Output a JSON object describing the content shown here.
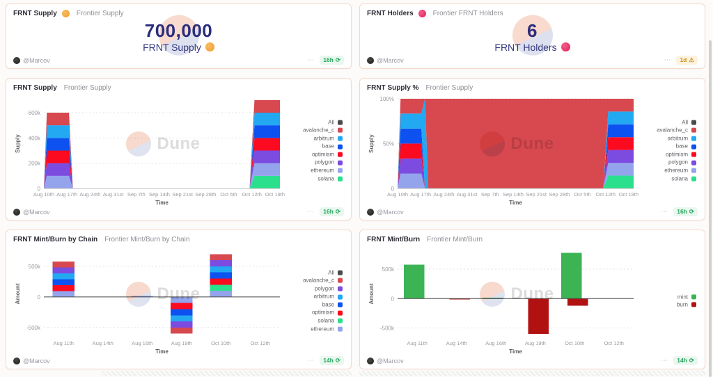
{
  "watermark": {
    "text": "Dune"
  },
  "ui": {
    "more": "⋯"
  },
  "badge_icons": {
    "ok": "⟳",
    "warn": "⚠"
  },
  "colors": {
    "panel_border": "#f5d8c7",
    "navy": "#2b2d7c",
    "all": "#4a4a4a",
    "avalanche_c": "#d7484f",
    "arbitrum": "#23a8f2",
    "base": "#0d51f0",
    "optimism": "#fb0a20",
    "polygon": "#7c4be0",
    "ethereum": "#94a4ec",
    "solana": "#2ae08c",
    "mint": "#3cb454",
    "burn": "#b11111",
    "badge_ok": "#27a35f",
    "badge_warn": "#cf9018"
  },
  "panels": [
    {
      "title": "FRNT Supply",
      "title_icon": "coin",
      "subtitle": "Frontier Supply",
      "counter": {
        "value": "700,000",
        "label": "FRNT Supply"
      },
      "footer": {
        "author": "@Marcov",
        "age": "16h",
        "state": "ok"
      }
    },
    {
      "title": "FRNT Holders",
      "title_icon": "berry",
      "subtitle": "Frontier FRNT Holders",
      "counter": {
        "value": "6",
        "label": "FRNT Holders"
      },
      "footer": {
        "author": "@Marcov",
        "age": "1d",
        "state": "warn"
      }
    },
    {
      "title": "FRNT Supply",
      "subtitle": "Frontier Supply",
      "chart": 0,
      "footer": {
        "author": "@Marcov",
        "age": "16h",
        "state": "ok"
      }
    },
    {
      "title": "FRNT Supply %",
      "subtitle": "Frontier Supply",
      "chart": 1,
      "footer": {
        "author": "@Marcov",
        "age": "16h",
        "state": "ok"
      }
    },
    {
      "title": "FRNT Mint/Burn by Chain",
      "subtitle": "Frontier Mint/Burn by Chain",
      "chart": 2,
      "footer": {
        "author": "@Marcov",
        "age": "14h",
        "state": "ok"
      }
    },
    {
      "title": "FRNT Mint/Burn",
      "subtitle": "Frontier Mint/Burn",
      "chart": 3,
      "footer": {
        "author": "@Marcov",
        "age": "14h",
        "state": "ok"
      }
    }
  ],
  "chart_data": [
    {
      "type": "area",
      "stacked": true,
      "title": "FRNT Supply",
      "xlabel": "Time",
      "ylabel": "Supply",
      "unit": "k tokens",
      "grid": true,
      "legend_position": "right",
      "xlim": [
        0,
        71.5
      ],
      "ylim": [
        0,
        710
      ],
      "x_breakpoints": [
        0,
        0.9,
        7.6,
        8.8,
        62.3,
        63.8,
        71.5
      ],
      "x_ticks": [
        {
          "v": 0,
          "label": "Aug 10th"
        },
        {
          "v": 7,
          "label": "Aug 17th"
        },
        {
          "v": 14,
          "label": "Aug 24th"
        },
        {
          "v": 21,
          "label": "Aug 31st"
        },
        {
          "v": 28,
          "label": "Sep 7th"
        },
        {
          "v": 35,
          "label": "Sep 14th"
        },
        {
          "v": 42,
          "label": "Sep 21st"
        },
        {
          "v": 49,
          "label": "Sep 28th"
        },
        {
          "v": 56,
          "label": "Oct 5th"
        },
        {
          "v": 63,
          "label": "Oct 12th"
        },
        {
          "v": 70,
          "label": "Oct 19th"
        }
      ],
      "y_ticks": [
        {
          "v": 0,
          "label": "0"
        },
        {
          "v": 200,
          "label": "200k"
        },
        {
          "v": 400,
          "label": "400k"
        },
        {
          "v": 600,
          "label": "600k"
        }
      ],
      "series": [
        {
          "name": "solana",
          "color": "#2ae08c",
          "values": [
            0,
            0,
            0,
            0,
            0,
            100,
            100
          ]
        },
        {
          "name": "ethereum",
          "color": "#94a4ec",
          "values": [
            0,
            100,
            100,
            0,
            0,
            100,
            100
          ]
        },
        {
          "name": "polygon",
          "color": "#7c4be0",
          "values": [
            0,
            100,
            100,
            0,
            0,
            100,
            100
          ]
        },
        {
          "name": "optimism",
          "color": "#fb0a20",
          "values": [
            0,
            100,
            100,
            0,
            0,
            100,
            100
          ]
        },
        {
          "name": "base",
          "color": "#0d51f0",
          "values": [
            0,
            100,
            100,
            0,
            0,
            100,
            100
          ]
        },
        {
          "name": "arbitrum",
          "color": "#23a8f2",
          "values": [
            0,
            100,
            100,
            0,
            0,
            100,
            100
          ]
        },
        {
          "name": "avalanche_c",
          "color": "#d7484f",
          "values": [
            0,
            100,
            100,
            0,
            0,
            100,
            100
          ]
        }
      ],
      "legend": [
        {
          "label": "All",
          "color": "#4a4a4a"
        },
        {
          "label": "avalanche_c",
          "color": "#d7484f"
        },
        {
          "label": "arbitrum",
          "color": "#23a8f2"
        },
        {
          "label": "base",
          "color": "#0d51f0"
        },
        {
          "label": "optimism",
          "color": "#fb0a20"
        },
        {
          "label": "polygon",
          "color": "#7c4be0"
        },
        {
          "label": "ethereum",
          "color": "#94a4ec"
        },
        {
          "label": "solana",
          "color": "#2ae08c"
        }
      ]
    },
    {
      "type": "area",
      "stacked": true,
      "percent": true,
      "title": "FRNT Supply %",
      "xlabel": "Time",
      "ylabel": "Supply",
      "unit": "%",
      "grid": true,
      "legend_position": "right",
      "xlim": [
        0,
        71.5
      ],
      "ylim": [
        0,
        100
      ],
      "x_breakpoints": [
        0,
        0.9,
        7.2,
        8.3,
        9.3,
        62.3,
        63.8,
        71.5
      ],
      "x_ticks": [
        {
          "v": 0,
          "label": "Aug 10th"
        },
        {
          "v": 7,
          "label": "Aug 17th"
        },
        {
          "v": 14,
          "label": "Aug 24th"
        },
        {
          "v": 21,
          "label": "Aug 31st"
        },
        {
          "v": 28,
          "label": "Sep 7th"
        },
        {
          "v": 35,
          "label": "Sep 14th"
        },
        {
          "v": 42,
          "label": "Sep 21st"
        },
        {
          "v": 49,
          "label": "Sep 28th"
        },
        {
          "v": 56,
          "label": "Oct 5th"
        },
        {
          "v": 63,
          "label": "Oct 12th"
        },
        {
          "v": 70,
          "label": "Oct 19th"
        }
      ],
      "y_ticks": [
        {
          "v": 0,
          "label": "0"
        },
        {
          "v": 50,
          "label": "50%"
        },
        {
          "v": 100,
          "label": "100%"
        }
      ],
      "series": [
        {
          "name": "solana",
          "color": "#2ae08c",
          "values": [
            0,
            0,
            0,
            0,
            0,
            0,
            14.3,
            14.3
          ]
        },
        {
          "name": "ethereum",
          "color": "#94a4ec",
          "values": [
            0,
            16.7,
            16.7,
            0,
            0,
            0,
            14.3,
            14.3
          ]
        },
        {
          "name": "polygon",
          "color": "#7c4be0",
          "values": [
            0,
            16.7,
            16.7,
            0,
            0,
            0,
            14.3,
            14.3
          ]
        },
        {
          "name": "optimism",
          "color": "#fb0a20",
          "values": [
            0,
            16.7,
            16.7,
            0,
            0,
            0,
            14.3,
            14.3
          ]
        },
        {
          "name": "base",
          "color": "#0d51f0",
          "values": [
            0,
            16.7,
            16.7,
            0,
            0,
            0,
            14.3,
            14.3
          ]
        },
        {
          "name": "arbitrum",
          "color": "#23a8f2",
          "values": [
            0,
            16.7,
            16.7,
            100,
            0,
            0,
            14.3,
            14.3
          ]
        },
        {
          "name": "avalanche_c",
          "color": "#d7484f",
          "values": [
            0,
            16.5,
            16.5,
            0,
            100,
            100,
            14.2,
            14.2
          ]
        }
      ],
      "legend": [
        {
          "label": "All",
          "color": "#4a4a4a"
        },
        {
          "label": "avalanche_c",
          "color": "#d7484f"
        },
        {
          "label": "arbitrum",
          "color": "#23a8f2"
        },
        {
          "label": "base",
          "color": "#0d51f0"
        },
        {
          "label": "optimism",
          "color": "#fb0a20"
        },
        {
          "label": "polygon",
          "color": "#7c4be0"
        },
        {
          "label": "ethereum",
          "color": "#94a4ec"
        },
        {
          "label": "solana",
          "color": "#2ae08c"
        }
      ]
    },
    {
      "type": "bar",
      "stacked": true,
      "title": "FRNT Mint/Burn by Chain",
      "xlabel": "Time",
      "ylabel": "Amount",
      "unit": "k tokens",
      "grid": true,
      "legend_position": "right",
      "ylim": [
        -660,
        760
      ],
      "categories": [
        "Aug 11th",
        "Aug 14th",
        "Aug 16th",
        "Aug 19th",
        "Oct 10th",
        "Oct 12th"
      ],
      "y_ticks": [
        {
          "v": -500,
          "label": "-500k"
        },
        {
          "v": 0,
          "label": "0"
        },
        {
          "v": 500,
          "label": "500k"
        }
      ],
      "series": [
        {
          "name": "ethereum",
          "color": "#94a4ec",
          "values": [
            96,
            0,
            14,
            -100,
            100,
            0
          ]
        },
        {
          "name": "solana",
          "color": "#2ae08c",
          "values": [
            0,
            0,
            0,
            0,
            100,
            0
          ]
        },
        {
          "name": "optimism",
          "color": "#fb0a20",
          "values": [
            96,
            0,
            0,
            -100,
            100,
            0
          ]
        },
        {
          "name": "base",
          "color": "#0d51f0",
          "values": [
            96,
            0,
            0,
            -100,
            100,
            0
          ]
        },
        {
          "name": "arbitrum",
          "color": "#23a8f2",
          "values": [
            96,
            0,
            0,
            -100,
            100,
            0
          ]
        },
        {
          "name": "polygon",
          "color": "#7c4be0",
          "values": [
            96,
            0,
            0,
            -100,
            100,
            0
          ]
        },
        {
          "name": "avalanche_c",
          "color": "#d7484f",
          "values": [
            96,
            0,
            0,
            -100,
            100,
            0
          ]
        }
      ],
      "legend": [
        {
          "label": "All",
          "color": "#4a4a4a"
        },
        {
          "label": "avalanche_c",
          "color": "#d7484f"
        },
        {
          "label": "polygon",
          "color": "#7c4be0"
        },
        {
          "label": "arbitrum",
          "color": "#23a8f2"
        },
        {
          "label": "base",
          "color": "#0d51f0"
        },
        {
          "label": "optimism",
          "color": "#fb0a20"
        },
        {
          "label": "solana",
          "color": "#2ae08c"
        },
        {
          "label": "ethereum",
          "color": "#94a4ec"
        }
      ]
    },
    {
      "type": "bar",
      "stacked": false,
      "title": "FRNT Mint/Burn",
      "xlabel": "Time",
      "ylabel": "Amount",
      "unit": "k tokens",
      "grid": true,
      "legend_position": "right",
      "ylim": [
        -660,
        820
      ],
      "categories": [
        "Aug 11th",
        "Aug 14th",
        "Aug 16th",
        "Aug 19th",
        "Oct 10th",
        "Oct 12th"
      ],
      "y_ticks": [
        {
          "v": -500,
          "label": "-500k"
        },
        {
          "v": 0,
          "label": "0"
        },
        {
          "v": 500,
          "label": "500k"
        }
      ],
      "series": [
        {
          "name": "mint",
          "color": "#3cb454",
          "values": [
            575,
            0,
            12,
            0,
            780,
            0
          ]
        },
        {
          "name": "burn",
          "color": "#b11111",
          "values": [
            0,
            -10,
            0,
            -600,
            -120,
            0
          ]
        }
      ],
      "legend": [
        {
          "label": "mint",
          "color": "#3cb454"
        },
        {
          "label": "burn",
          "color": "#b11111"
        }
      ]
    }
  ]
}
